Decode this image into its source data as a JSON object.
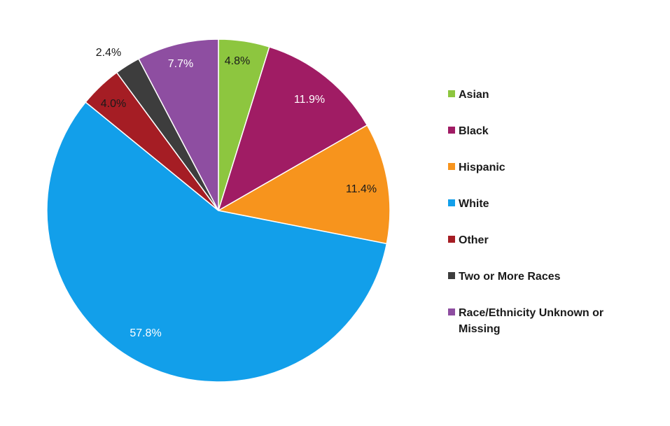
{
  "chart_data": {
    "type": "pie",
    "title": "",
    "legend_position": "right",
    "start_angle_deg": 0,
    "direction": "clockwise",
    "slices": [
      {
        "name": "Asian",
        "value": 4.8,
        "label": "4.8%",
        "color": "#8dc63f",
        "label_color": "#1a1a1a"
      },
      {
        "name": "Black",
        "value": 11.9,
        "label": "11.9%",
        "color": "#a01c64",
        "label_color": "#ffffff"
      },
      {
        "name": "Hispanic",
        "value": 11.4,
        "label": "11.4%",
        "color": "#f7941d",
        "label_color": "#1a1a1a"
      },
      {
        "name": "White",
        "value": 57.8,
        "label": "57.8%",
        "color": "#129fea",
        "label_color": "#ffffff"
      },
      {
        "name": "Other",
        "value": 4.0,
        "label": "4.0%",
        "color": "#a51d24",
        "label_color": "#1a1a1a"
      },
      {
        "name": "Two or More Races",
        "value": 2.4,
        "label": "2.4%",
        "color": "#3d3d3d",
        "label_color": "#1a1a1a"
      },
      {
        "name": "Race/Ethnicity Unknown or Missing",
        "value": 7.7,
        "label": "7.7%",
        "color": "#8e4ea1",
        "label_color": "#ffffff"
      }
    ]
  }
}
